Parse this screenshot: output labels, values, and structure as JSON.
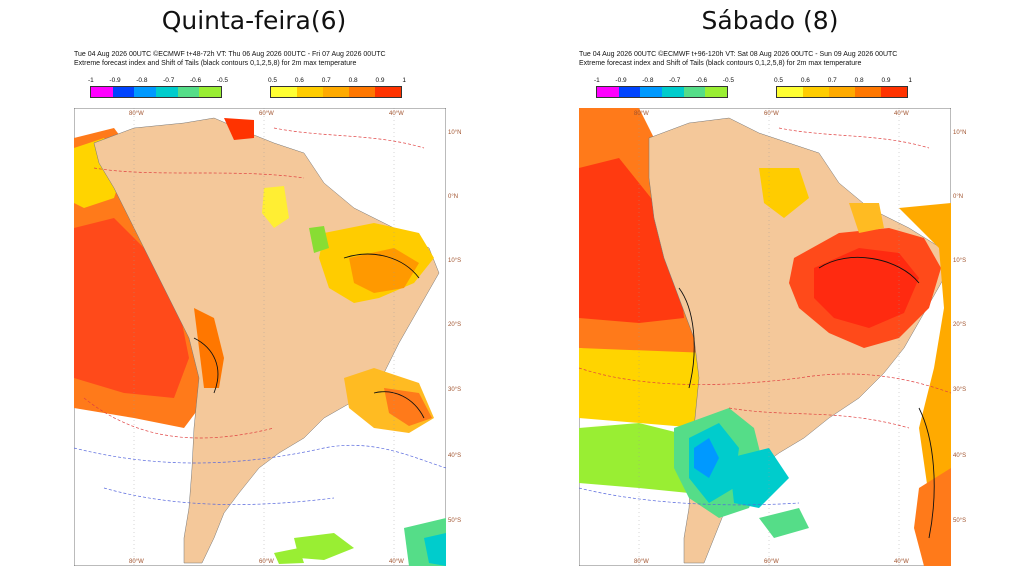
{
  "panels": [
    {
      "title": "Quinta-feira(6)",
      "header_line1": "Tue 04 Aug 2026 00UTC ©ECMWF t+48-72h  VT: Thu 06 Aug 2026 00UTC - Fri 07 Aug 2026 00UTC",
      "header_line2": "Extreme forecast index and Shift of Tails (black contours 0,1,2,5,8) for 2m max temperature"
    },
    {
      "title": "Sábado (8)",
      "header_line1": "Tue 04 Aug 2026 00UTC ©ECMWF t+96-120h  VT: Sat 08 Aug 2026 00UTC - Sun 09 Aug 2026 00UTC",
      "header_line2": "Extreme forecast index and Shift of Tails (black contours 0,1,2,5,8) for 2m max temperature"
    }
  ],
  "legend": {
    "negative_ticks": [
      "-1",
      "-0.9",
      "-0.8",
      "-0.7",
      "-0.6",
      "-0.5"
    ],
    "positive_ticks": [
      "0.5",
      "0.6",
      "0.7",
      "0.8",
      "0.9",
      "1"
    ],
    "negative_colors": [
      "#ff00ff",
      "#0044ff",
      "#0099ff",
      "#00cccc",
      "#55dd88",
      "#99ee33"
    ],
    "positive_colors": [
      "#ffff33",
      "#ffcc00",
      "#ffaa00",
      "#ff7700",
      "#ff3300"
    ]
  },
  "axes": {
    "lon_labels": [
      "80°W",
      "60°W",
      "40°W"
    ],
    "lat_labels": [
      "10°N",
      "0°N",
      "10°S",
      "20°S",
      "30°S",
      "40°S",
      "50°S"
    ]
  },
  "colors": {
    "land": "#f4c89a",
    "ocean": "#ffffff",
    "contour_positive": "#e04040",
    "contour_negative": "#5566dd",
    "axis_label": "#a0522d"
  }
}
